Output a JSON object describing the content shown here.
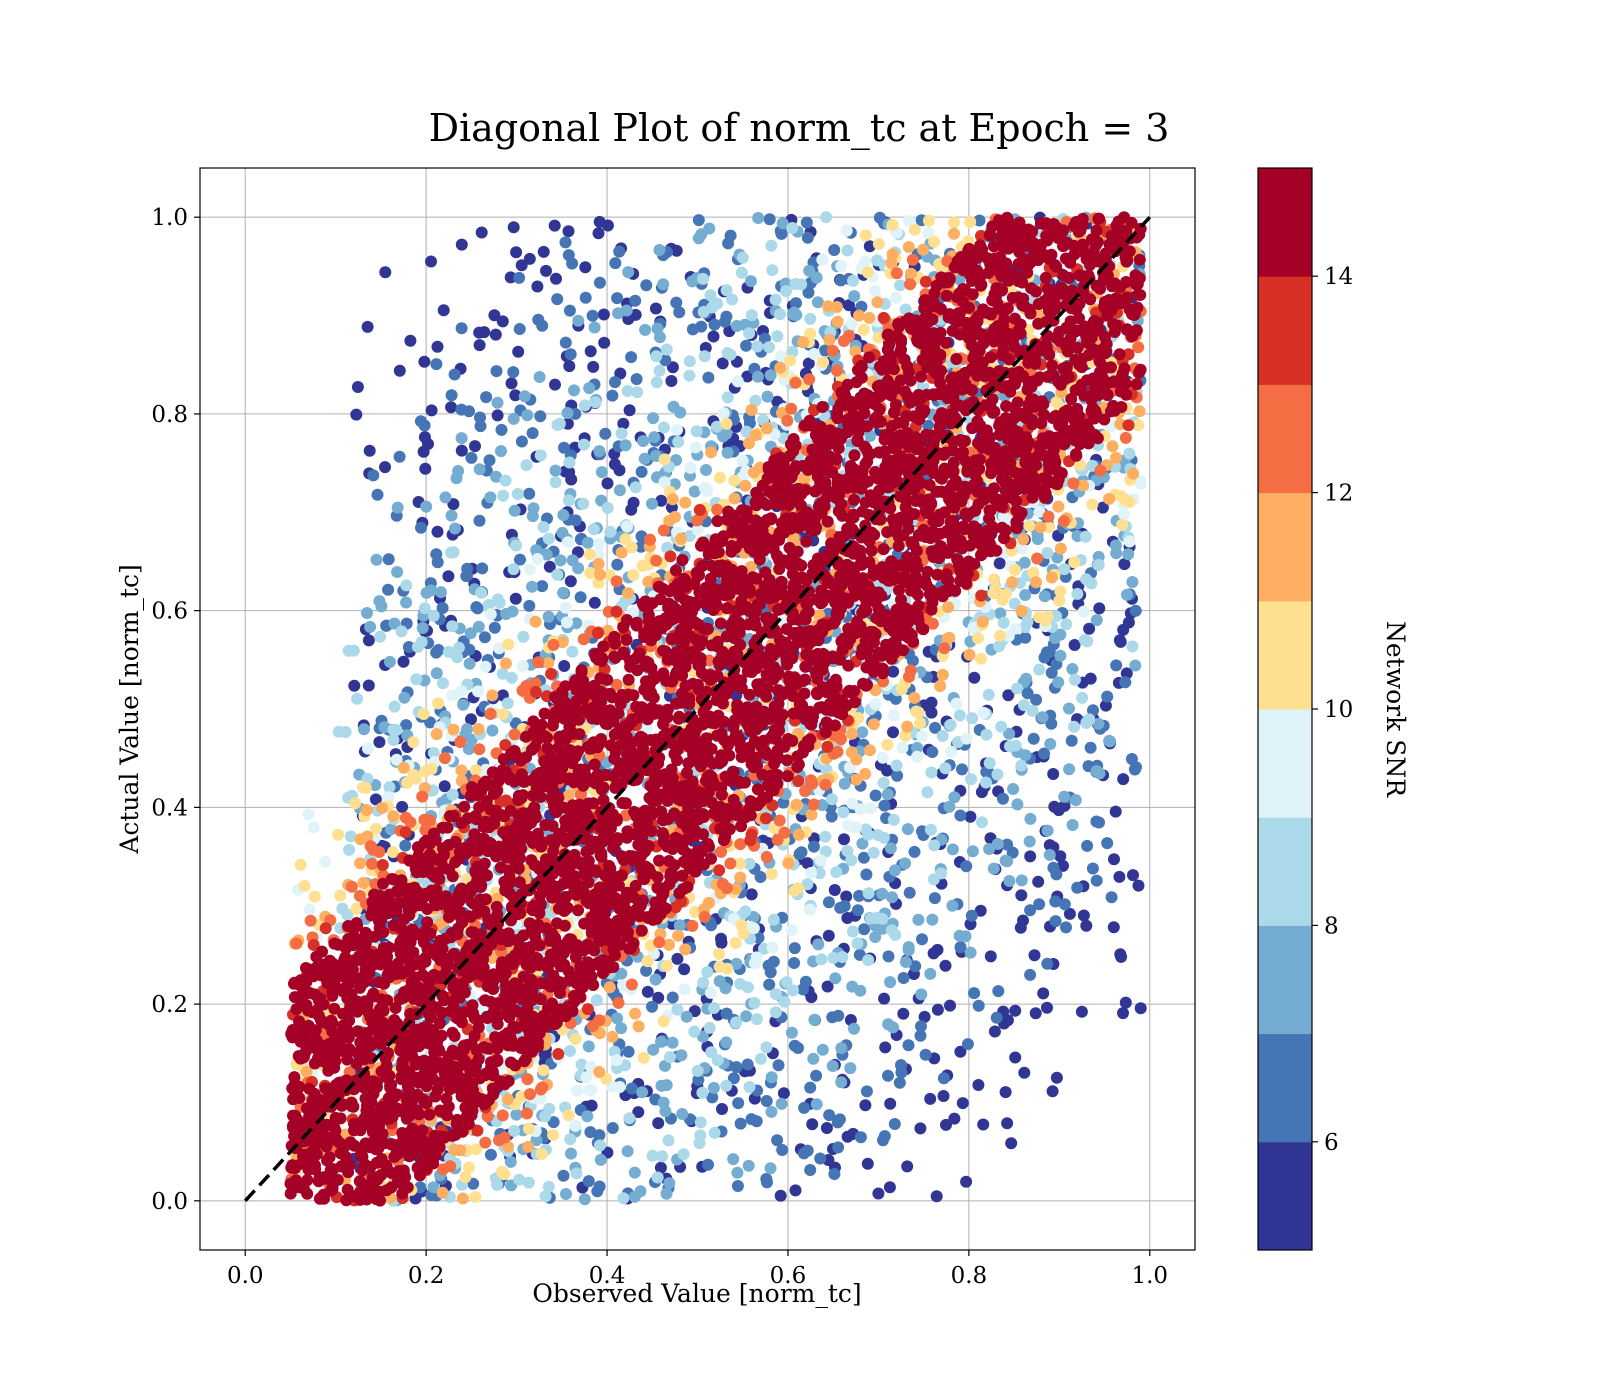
{
  "chart_data": {
    "type": "scatter",
    "title": "Diagonal Plot of norm_tc at Epoch = 3",
    "xlabel": "Observed Value [norm_tc]",
    "ylabel": "Actual Value [norm_tc]",
    "xlim": [
      -0.05,
      1.05
    ],
    "ylim": [
      -0.05,
      1.05
    ],
    "xticks": [
      0.0,
      0.2,
      0.4,
      0.6,
      0.8,
      1.0
    ],
    "yticks": [
      0.0,
      0.2,
      0.4,
      0.6,
      0.8,
      1.0
    ],
    "xtick_labels": [
      "0.0",
      "0.2",
      "0.4",
      "0.6",
      "0.8",
      "1.0"
    ],
    "ytick_labels": [
      "0.0",
      "0.2",
      "0.4",
      "0.6",
      "0.8",
      "1.0"
    ],
    "grid": true,
    "reference_line": {
      "x": [
        0.0,
        1.0
      ],
      "y": [
        0.0,
        1.0
      ],
      "style": "dashed",
      "color": "#000000"
    },
    "point_clouds": [
      {
        "snr": 15,
        "color": "#a50026",
        "n": 4200,
        "x_range": [
          0.05,
          0.99
        ],
        "y_offset_range": [
          -0.17,
          0.17
        ],
        "note_text_free": true
      },
      {
        "snr": 14,
        "color": "#d73027",
        "n": 300,
        "x_range": [
          0.05,
          0.99
        ],
        "y_offset_range": [
          -0.2,
          0.2
        ]
      },
      {
        "snr": 13,
        "color": "#f46d43",
        "n": 450,
        "x_range": [
          0.05,
          0.99
        ],
        "y_offset_range": [
          -0.23,
          0.23
        ]
      },
      {
        "snr": 12,
        "color": "#fdae61",
        "n": 450,
        "x_range": [
          0.05,
          0.99
        ],
        "y_offset_range": [
          -0.27,
          0.27
        ]
      },
      {
        "snr": 11,
        "color": "#fee090",
        "n": 450,
        "x_range": [
          0.05,
          0.99
        ],
        "y_offset_range": [
          -0.3,
          0.3
        ]
      },
      {
        "snr": 10,
        "color": "#e0f3f8",
        "n": 350,
        "x_range": [
          0.05,
          0.99
        ],
        "y_offset_range": [
          -0.33,
          0.33
        ]
      },
      {
        "snr": 9,
        "color": "#abd9e9",
        "n": 700,
        "x_range": [
          0.1,
          0.99
        ],
        "y_offset_range": [
          -0.45,
          0.45
        ]
      },
      {
        "snr": 8,
        "color": "#74add1",
        "n": 700,
        "x_range": [
          0.12,
          0.99
        ],
        "y_offset_range": [
          -0.55,
          0.55
        ]
      },
      {
        "snr": 7,
        "color": "#4575b4",
        "n": 800,
        "x_range": [
          0.14,
          0.99
        ],
        "y_offset_range": [
          -0.65,
          0.65
        ]
      },
      {
        "snr": 6,
        "color": "#313695",
        "n": 750,
        "x_range": [
          0.12,
          0.99
        ],
        "y_offset_range": [
          -0.8,
          0.8
        ]
      }
    ],
    "colorbar": {
      "label": "Network SNR",
      "range": [
        5,
        15
      ],
      "tick_values": [
        6,
        8,
        10,
        12,
        14
      ],
      "tick_labels": [
        "6",
        "8",
        "10",
        "12",
        "14"
      ],
      "levels": [
        5,
        6,
        7,
        8,
        9,
        10,
        11,
        12,
        13,
        14,
        15
      ],
      "colors": [
        "#313695",
        "#4575b4",
        "#74add1",
        "#abd9e9",
        "#e0f3f8",
        "#fee090",
        "#fdae61",
        "#f46d43",
        "#d73027",
        "#a50026"
      ]
    }
  }
}
